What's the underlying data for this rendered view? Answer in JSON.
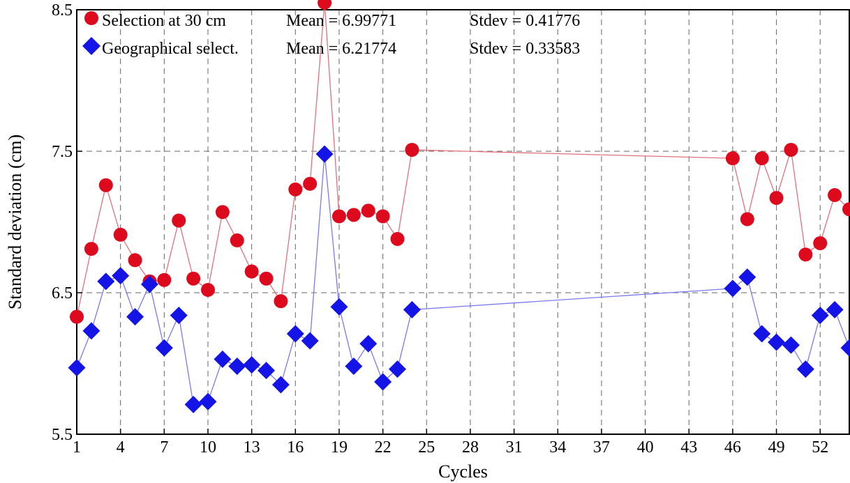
{
  "chart_data": {
    "type": "scatter",
    "xlabel": "Cycles",
    "ylabel": "Standard deviation (cm)",
    "xlim": [
      1,
      54
    ],
    "ylim": [
      5.5,
      8.5
    ],
    "x_ticks": [
      1,
      4,
      7,
      10,
      13,
      16,
      19,
      22,
      25,
      28,
      31,
      34,
      37,
      40,
      43,
      46,
      49,
      52
    ],
    "y_ticks": [
      5.5,
      6.5,
      7.5,
      8.5
    ],
    "y_tick_labels": [
      "5.5",
      "6.5",
      "7.5",
      "8.5"
    ],
    "grid": true,
    "legend_position": "top-left",
    "series": [
      {
        "name": "Selection at 30 cm",
        "marker": "circle",
        "color": "#dd0a1e",
        "line_color": "#e0727c",
        "mean_label": "Mean = 6.99771",
        "stdev_label": "Stdev = 0.41776",
        "x": [
          1,
          2,
          3,
          4,
          5,
          6,
          7,
          8,
          9,
          10,
          11,
          12,
          13,
          14,
          15,
          16,
          17,
          18,
          19,
          20,
          21,
          22,
          23,
          24,
          46,
          47,
          48,
          49,
          50,
          51,
          52,
          53,
          54
        ],
        "values": [
          6.33,
          6.81,
          7.26,
          6.91,
          6.73,
          6.58,
          6.59,
          7.01,
          6.6,
          6.52,
          7.07,
          6.87,
          6.65,
          6.6,
          6.44,
          7.23,
          7.27,
          8.55,
          7.04,
          7.05,
          7.08,
          7.04,
          6.88,
          7.51,
          7.45,
          7.02,
          7.45,
          7.17,
          7.51,
          6.77,
          6.85,
          7.19,
          7.09
        ]
      },
      {
        "name": "Geographical select.",
        "marker": "diamond",
        "color": "#1414e6",
        "line_color": "#7a7af0",
        "mean_label": "Mean = 6.21774",
        "stdev_label": "Stdev = 0.33583",
        "x": [
          1,
          2,
          3,
          4,
          5,
          6,
          7,
          8,
          9,
          10,
          11,
          12,
          13,
          14,
          15,
          16,
          17,
          18,
          19,
          20,
          21,
          22,
          23,
          24,
          46,
          47,
          48,
          49,
          50,
          51,
          52,
          53,
          54
        ],
        "values": [
          5.97,
          6.23,
          6.58,
          6.62,
          6.33,
          6.56,
          6.11,
          6.34,
          5.71,
          5.73,
          6.03,
          5.98,
          5.99,
          5.95,
          5.85,
          6.21,
          6.16,
          7.48,
          6.4,
          5.98,
          6.14,
          5.87,
          5.96,
          6.38,
          6.53,
          6.61,
          6.21,
          6.15,
          6.13,
          5.96,
          6.34,
          6.38,
          6.11
        ]
      }
    ]
  }
}
